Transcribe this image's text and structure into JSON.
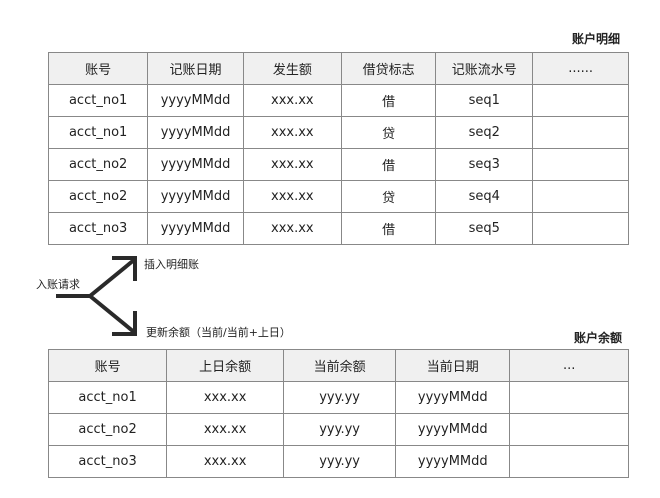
{
  "detail": {
    "title": "账户明细",
    "headers": [
      "账号",
      "记账日期",
      "发生额",
      "借贷标志",
      "记账流水号",
      "......"
    ],
    "rows": [
      [
        "acct_no1",
        "yyyyMMdd",
        "xxx.xx",
        "借",
        "seq1",
        ""
      ],
      [
        "acct_no1",
        "yyyyMMdd",
        "xxx.xx",
        "贷",
        "seq2",
        ""
      ],
      [
        "acct_no2",
        "yyyyMMdd",
        "xxx.xx",
        "借",
        "seq3",
        ""
      ],
      [
        "acct_no2",
        "yyyyMMdd",
        "xxx.xx",
        "贷",
        "seq4",
        ""
      ],
      [
        "acct_no3",
        "yyyyMMdd",
        "xxx.xx",
        "借",
        "seq5",
        ""
      ]
    ]
  },
  "flow": {
    "source": "入账请求",
    "branch_top": "插入明细账",
    "branch_bottom": "更新余额（当前/当前+上日）"
  },
  "balance": {
    "title": "账户余额",
    "headers": [
      "账号",
      "上日余额",
      "当前余额",
      "当前日期",
      "..."
    ],
    "rows": [
      [
        "acct_no1",
        "xxx.xx",
        "yyy.yy",
        "yyyyMMdd",
        ""
      ],
      [
        "acct_no2",
        "xxx.xx",
        "yyy.yy",
        "yyyyMMdd",
        ""
      ],
      [
        "acct_no3",
        "xxx.xx",
        "yyy.yy",
        "yyyyMMdd",
        ""
      ]
    ]
  }
}
